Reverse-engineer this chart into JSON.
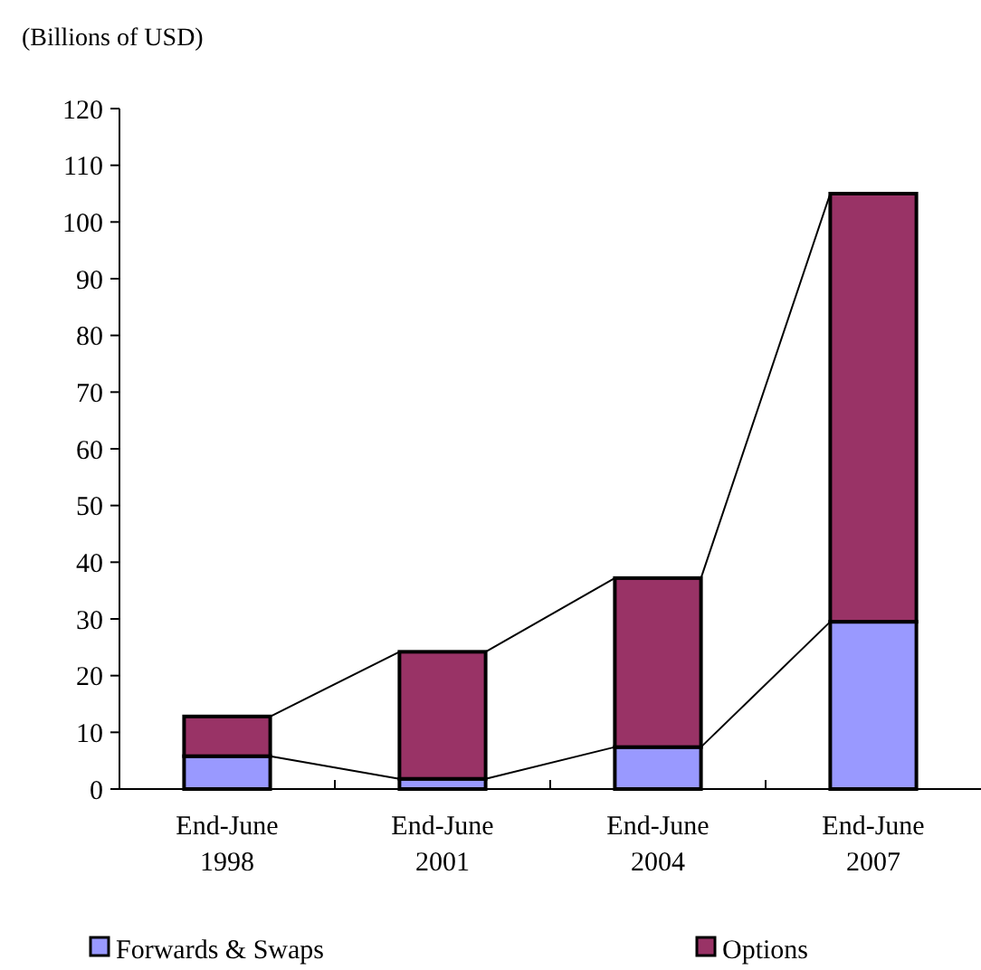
{
  "chart_data": {
    "type": "bar",
    "stacked": true,
    "ylabel": "(Billions of USD)",
    "categories": [
      "End-June 1998",
      "End-June 2001",
      "End-June 2004",
      "End-June 2007"
    ],
    "series": [
      {
        "name": "Forwards & Swaps",
        "color": "#9999ff",
        "values": [
          5.8,
          1.8,
          7.4,
          29.5
        ]
      },
      {
        "name": "Options",
        "color": "#993366",
        "values": [
          7.0,
          22.4,
          29.8,
          75.5
        ]
      }
    ],
    "ylim": [
      0,
      120
    ],
    "yticks": [
      0,
      10,
      20,
      30,
      40,
      50,
      60,
      70,
      80,
      90,
      100,
      110,
      120
    ],
    "grid": false,
    "legend": "bottom"
  }
}
